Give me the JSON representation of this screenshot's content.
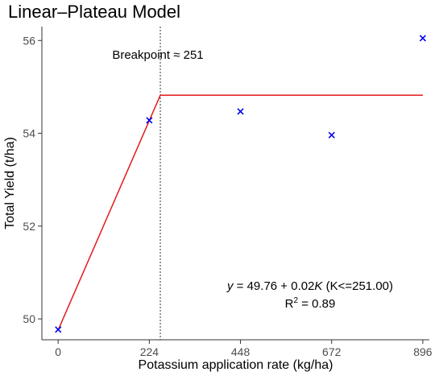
{
  "chart_data": {
    "type": "scatter",
    "title": "Linear–Plateau Model",
    "xlabel": "Potassium application rate (kg/ha)",
    "ylabel": "Total Yield (t/ha)",
    "xlim": [
      -40,
      912
    ],
    "ylim": [
      49.55,
      56.3
    ],
    "xticks": [
      0,
      224,
      448,
      672,
      896
    ],
    "yticks": [
      50,
      52,
      54,
      56
    ],
    "grid": false,
    "points": [
      {
        "x": 0,
        "y": 49.77
      },
      {
        "x": 224,
        "y": 54.28
      },
      {
        "x": 448,
        "y": 54.47
      },
      {
        "x": 672,
        "y": 53.96
      },
      {
        "x": 896,
        "y": 56.05
      }
    ],
    "fit": {
      "intercept": 49.76,
      "slope": 0.02,
      "breakpoint": 251,
      "plateau": 54.82,
      "x_end": 896
    },
    "breakpoint_label": "Breakpoint ≈ 251",
    "equation": {
      "y_var": "y",
      "middle": " = 49.76 + 0.02",
      "k_var": "K",
      "tail": " (K<=251.00)"
    },
    "r2": {
      "prefix": "R",
      "sup": "2",
      "suffix": " = 0.89"
    },
    "colors": {
      "points": "#0000ee",
      "fit_line": "#e31a1c",
      "breakpoint_line": "#333333",
      "axis": "#333333"
    }
  }
}
